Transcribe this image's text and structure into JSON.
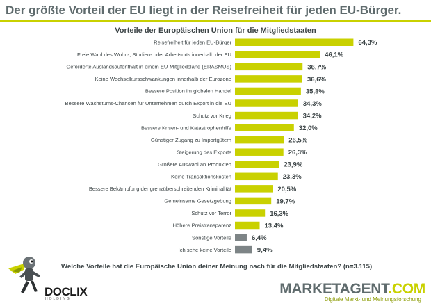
{
  "headline": "Der größte Vorteil der EU liegt in der Reisefreiheit für jeden EU-Bürger.",
  "question": "Welche Vorteile hat die Europäische Union deiner Meinung nach für die Mitgliedstaaten? (n=3.115)",
  "colors": {
    "accent": "#c9d100",
    "other": "#7d8486",
    "text": "#3c4446",
    "headline": "#5f6b6d"
  },
  "logos": {
    "left": {
      "name": "DOCLIX",
      "tagline": "HOLDING"
    },
    "right": {
      "name_prefix": "MARKETAGENT",
      "name_suffix": ".COM",
      "tagline": "Digitale Markt- und Meinungsforschung"
    }
  },
  "chart_data": {
    "type": "bar",
    "orientation": "horizontal",
    "title": "Vorteile der Europäischen Union für die Mitgliedstaaten",
    "unit": "%",
    "categories": [
      "Reisefreiheit für jeden EU-Bürger",
      "Freie Wahl des Wohn-, Studien- oder Arbeitsorts innerhalb der EU",
      "Geförderte Auslandsaufenthalt in einem EU-Mitgliedsland (ERASMUS)",
      "Keine Wechselkursschwankungen innerhalb der Eurozone",
      "Bessere Position im globalen Handel",
      "Bessere Wachstums-Chancen für Unternehmen durch Export in die EU",
      "Schutz vor Krieg",
      "Bessere Krisen- und Katastrophenhilfe",
      "Günstiger Zugang zu Importgütern",
      "Steigerung des Exports",
      "Größere Auswahl an Produkten",
      "Keine Transaktionskosten",
      "Bessere Bekämpfung der grenzüberschreitenden Kriminalität",
      "Gemeinsame Gesetzgebung",
      "Schutz vor Terror",
      "Höhere Preistransparenz",
      "Sonstige Vorteile",
      "Ich sehe keine Vorteile"
    ],
    "values": [
      64.3,
      46.1,
      36.7,
      36.6,
      35.8,
      34.3,
      34.2,
      32.0,
      26.5,
      26.3,
      23.9,
      23.3,
      20.5,
      19.7,
      16.3,
      13.4,
      6.4,
      9.4
    ],
    "value_labels": [
      "64,3%",
      "46,1%",
      "36,7%",
      "36,6%",
      "35,8%",
      "34,3%",
      "34,2%",
      "32,0%",
      "26,5%",
      "26,3%",
      "23,9%",
      "23,3%",
      "20,5%",
      "19,7%",
      "16,3%",
      "13,4%",
      "6,4%",
      "9,4%"
    ],
    "bar_colors": [
      "accent",
      "accent",
      "accent",
      "accent",
      "accent",
      "accent",
      "accent",
      "accent",
      "accent",
      "accent",
      "accent",
      "accent",
      "accent",
      "accent",
      "accent",
      "accent",
      "other",
      "other"
    ],
    "xlim": [
      0,
      70
    ],
    "grid": false,
    "legend": "none"
  }
}
